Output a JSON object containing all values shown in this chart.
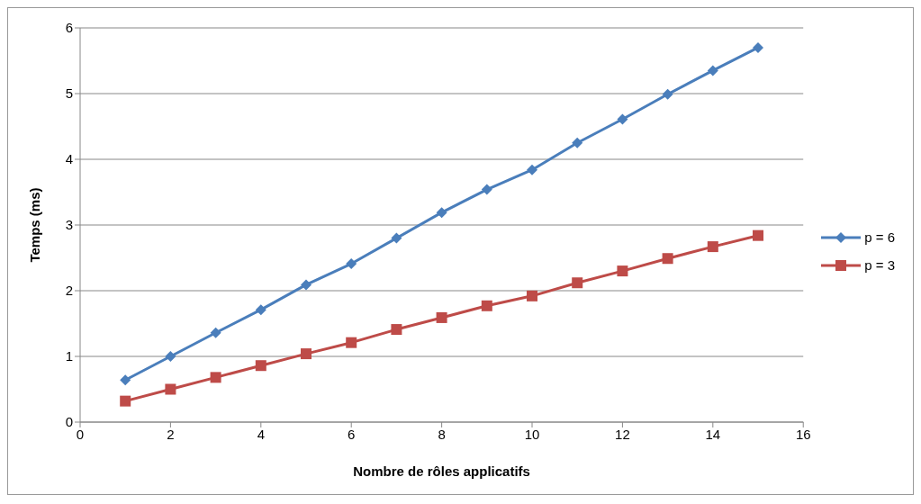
{
  "chart_data": {
    "type": "line",
    "xlabel": "Nombre de rôles applicatifs",
    "ylabel": "Temps (ms)",
    "x": [
      1,
      2,
      3,
      4,
      5,
      6,
      7,
      8,
      9,
      10,
      11,
      12,
      13,
      14,
      15
    ],
    "series": [
      {
        "name": "p = 6",
        "color": "#4a7ebb",
        "marker": "diamond",
        "values": [
          0.64,
          1.0,
          1.36,
          1.71,
          2.09,
          2.41,
          2.8,
          3.19,
          3.54,
          3.84,
          4.25,
          4.61,
          4.99,
          5.35,
          5.7
        ]
      },
      {
        "name": "p = 3",
        "color": "#be4b48",
        "marker": "square",
        "values": [
          0.32,
          0.5,
          0.68,
          0.86,
          1.04,
          1.21,
          1.41,
          1.59,
          1.77,
          1.92,
          2.12,
          2.3,
          2.49,
          2.67,
          2.84
        ]
      }
    ],
    "xlim": [
      0,
      16
    ],
    "xticks": [
      0,
      2,
      4,
      6,
      8,
      10,
      12,
      14,
      16
    ],
    "ylim": [
      0,
      6
    ],
    "yticks": [
      0,
      1,
      2,
      3,
      4,
      5,
      6
    ],
    "grid": "y",
    "legend": "right",
    "line_style": "solid"
  }
}
